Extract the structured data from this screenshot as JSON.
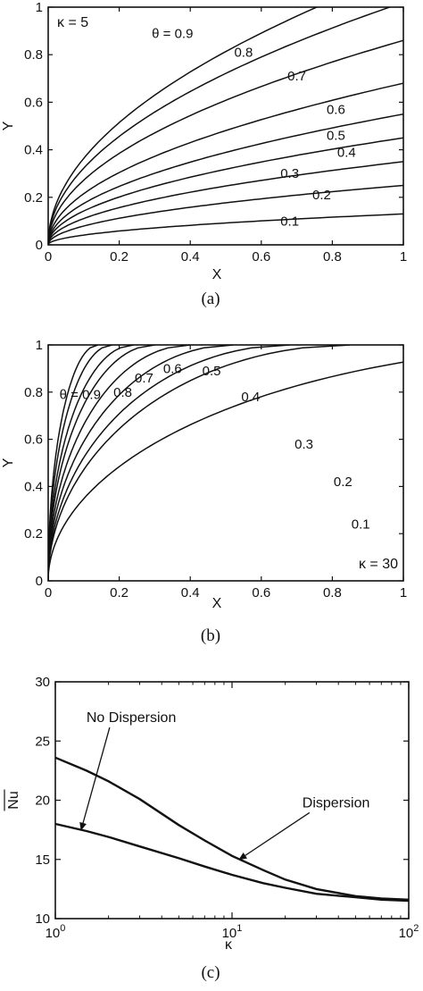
{
  "chart_data": [
    {
      "type": "contour",
      "caption": "(a)",
      "xlabel": "X",
      "ylabel": "Y",
      "xlim": [
        0,
        1
      ],
      "ylim": [
        0,
        1
      ],
      "xticks": [
        "0",
        "0.2",
        "0.4",
        "0.6",
        "0.8",
        "1"
      ],
      "yticks": [
        "0",
        "0.2",
        "0.4",
        "0.6",
        "0.8",
        "1"
      ],
      "annotation": "κ = 5",
      "grid": false,
      "series": [
        {
          "label": "θ = 0.9",
          "at_x1_y": 1.15,
          "label_x": 0.35,
          "label_y": 0.89
        },
        {
          "label": "0.8",
          "at_x1_y": 1.02,
          "label_x": 0.55,
          "label_y": 0.81
        },
        {
          "label": "0.7",
          "at_x1_y": 0.86,
          "label_x": 0.7,
          "label_y": 0.71
        },
        {
          "label": "0.6",
          "at_x1_y": 0.68,
          "label_x": 0.81,
          "label_y": 0.57
        },
        {
          "label": "0.5",
          "at_x1_y": 0.55,
          "label_x": 0.81,
          "label_y": 0.46
        },
        {
          "label": "0.4",
          "at_x1_y": 0.45,
          "label_x": 0.84,
          "label_y": 0.39
        },
        {
          "label": "0.3",
          "at_x1_y": 0.35,
          "label_x": 0.68,
          "label_y": 0.3
        },
        {
          "label": "0.2",
          "at_x1_y": 0.25,
          "label_x": 0.77,
          "label_y": 0.21
        },
        {
          "label": "0.1",
          "at_x1_y": 0.13,
          "label_x": 0.68,
          "label_y": 0.1
        }
      ]
    },
    {
      "type": "contour",
      "caption": "(b)",
      "xlabel": "X",
      "ylabel": "Y",
      "xlim": [
        0,
        1
      ],
      "ylim": [
        0,
        1
      ],
      "xticks": [
        "0",
        "0.2",
        "0.4",
        "0.6",
        "0.8",
        "1"
      ],
      "yticks": [
        "0",
        "0.2",
        "0.4",
        "0.6",
        "0.8",
        "1"
      ],
      "annotation": "κ = 30",
      "grid": false,
      "series": [
        {
          "label": "θ = 0.9",
          "reach_x": 0.14,
          "label_x": 0.09,
          "label_y": 0.79
        },
        {
          "label": "0.8",
          "reach_x": 0.18,
          "label_x": 0.21,
          "label_y": 0.8
        },
        {
          "label": "0.7",
          "reach_x": 0.24,
          "label_x": 0.27,
          "label_y": 0.86
        },
        {
          "label": "0.6",
          "reach_x": 0.3,
          "label_x": 0.35,
          "label_y": 0.9
        },
        {
          "label": "0.5",
          "reach_x": 0.4,
          "label_x": 0.46,
          "label_y": 0.89
        },
        {
          "label": "0.4",
          "reach_x": 0.52,
          "label_x": 0.57,
          "label_y": 0.78
        },
        {
          "label": "0.3",
          "reach_x": 0.68,
          "label_x": 0.72,
          "label_y": 0.58
        },
        {
          "label": "0.2",
          "reach_x": 0.85,
          "label_x": 0.83,
          "label_y": 0.42
        },
        {
          "label": "0.1",
          "reach_x": 1.6,
          "label_x": 0.88,
          "label_y": 0.24
        }
      ]
    },
    {
      "type": "line",
      "caption": "(c)",
      "xlabel": "κ",
      "ylabel": "Nu",
      "xscale": "log",
      "xlim": [
        1,
        100
      ],
      "ylim": [
        10,
        30
      ],
      "yticks": [
        "10",
        "15",
        "20",
        "25",
        "30"
      ],
      "grid": false,
      "series": [
        {
          "x": [
            1,
            1.5,
            2,
            3,
            5,
            7,
            10,
            15,
            20,
            30,
            50,
            70,
            100
          ],
          "y": [
            23.6,
            22.5,
            21.6,
            20.1,
            17.9,
            16.6,
            15.3,
            14.1,
            13.3,
            12.5,
            11.9,
            11.7,
            11.6
          ]
        },
        {
          "x": [
            1,
            1.5,
            2,
            3,
            5,
            7,
            10,
            15,
            20,
            30,
            50,
            70,
            100
          ],
          "y": [
            18.0,
            17.4,
            16.9,
            16.1,
            15.1,
            14.4,
            13.7,
            13.0,
            12.6,
            12.1,
            11.8,
            11.6,
            11.5
          ]
        }
      ],
      "annotations": [
        {
          "text": "No Dispersion",
          "text_x": 1.5,
          "text_y": 26.6,
          "arrow_to_x": 1.4,
          "arrow_to_y": 17.5
        },
        {
          "text": "Dispersion",
          "text_x": 25,
          "text_y": 19.4,
          "arrow_to_x": 11,
          "arrow_to_y": 15.0
        }
      ]
    }
  ]
}
